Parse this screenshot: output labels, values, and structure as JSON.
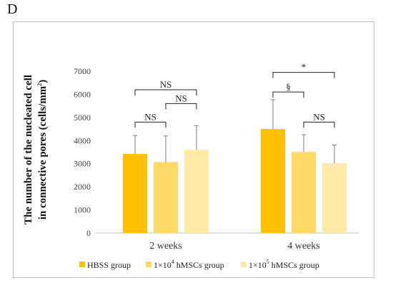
{
  "panel_label": "D",
  "chart_data": {
    "type": "bar",
    "categories": [
      "2 weeks",
      "4 weeks"
    ],
    "series": [
      {
        "name": "HBSS group",
        "color": "#FFC000",
        "values": [
          3420,
          4500
        ],
        "errors": [
          800,
          1270
        ]
      },
      {
        "name": "1×10^4 hMSCs group",
        "color": "#FFD966",
        "values": [
          3070,
          3510
        ],
        "errors": [
          1130,
          740
        ]
      },
      {
        "name": "1×10^5 hMSCs group",
        "color": "#FFE9A6",
        "values": [
          3600,
          3020
        ],
        "errors": [
          1040,
          790
        ]
      }
    ],
    "ylim": [
      0,
      7000
    ],
    "yticks": [
      0,
      1000,
      2000,
      3000,
      4000,
      5000,
      6000,
      7000
    ],
    "ylabel_line1": "The number of the nucleated cell",
    "ylabel_line2": "in connective pores (cells/mm",
    "ylabel_sup": "2",
    "ylabel_close": ")",
    "legend": [
      {
        "pre": "HBSS group",
        "sup": "",
        "post": ""
      },
      {
        "pre": "1×10",
        "sup": "4",
        "post": " hMSCs group"
      },
      {
        "pre": "1×10",
        "sup": "5",
        "post": " hMSCs group"
      }
    ],
    "significance": [
      {
        "cat": 0,
        "from": 0,
        "to": 2,
        "level": 6200,
        "label": "NS"
      },
      {
        "cat": 0,
        "from": 1,
        "to": 2,
        "level": 5600,
        "label": "NS"
      },
      {
        "cat": 0,
        "from": 0,
        "to": 1,
        "level": 4800,
        "label": "NS"
      },
      {
        "cat": 1,
        "from": 0,
        "to": 2,
        "level": 6950,
        "label": "*"
      },
      {
        "cat": 1,
        "from": 0,
        "to": 1,
        "level": 6100,
        "label": "§"
      },
      {
        "cat": 1,
        "from": 1,
        "to": 2,
        "level": 4800,
        "label": "NS"
      }
    ]
  }
}
